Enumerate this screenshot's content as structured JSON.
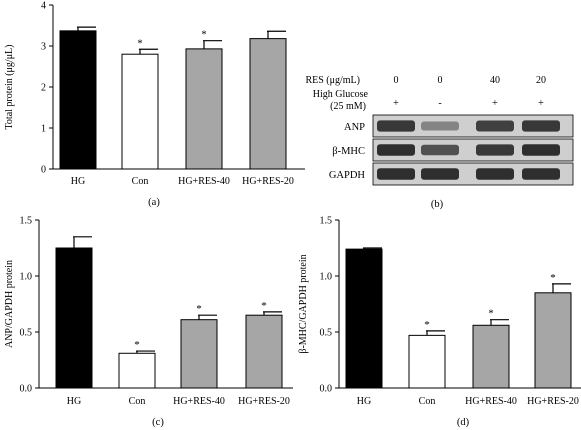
{
  "colors": {
    "black": "#000000",
    "white": "#ffffff",
    "gray": "#a6a6a6",
    "blot_bg": "#2a2a2a"
  },
  "chart_data": [
    {
      "panel": "(a)",
      "type": "bar",
      "categories": [
        "HG",
        "Con",
        "HG+RES-40",
        "HG+RES-20"
      ],
      "values": [
        3.37,
        2.8,
        2.93,
        3.18
      ],
      "errors": [
        0.09,
        0.12,
        0.2,
        0.18
      ],
      "significance": [
        "",
        "*",
        "*",
        ""
      ],
      "fills": [
        "black",
        "white",
        "gray",
        "gray"
      ],
      "ylabel": "Total protein (μg/μL)",
      "ylim": [
        0,
        4
      ],
      "yticks": [
        "0",
        "1",
        "2",
        "3",
        "4"
      ],
      "ytick_values": [
        0,
        1,
        2,
        3,
        4
      ]
    },
    {
      "panel": "(c)",
      "type": "bar",
      "categories": [
        "HG",
        "Con",
        "HG+RES-40",
        "HG+RES-20"
      ],
      "values": [
        1.25,
        0.31,
        0.61,
        0.65
      ],
      "errors": [
        0.1,
        0.02,
        0.04,
        0.03
      ],
      "significance": [
        "",
        "*",
        "*",
        "*"
      ],
      "fills": [
        "black",
        "white",
        "gray",
        "gray"
      ],
      "ylabel": "ANP/GAPDH protein",
      "ylim": [
        0,
        1.5
      ],
      "yticks": [
        "0.0",
        "0.5",
        "1.0",
        "1.5"
      ],
      "ytick_values": [
        0,
        0.5,
        1.0,
        1.5
      ]
    },
    {
      "panel": "(d)",
      "type": "bar",
      "categories": [
        "HG",
        "Con",
        "HG+RES-40",
        "HG+RES-20"
      ],
      "values": [
        1.24,
        0.47,
        0.56,
        0.85
      ],
      "errors": [
        0.01,
        0.04,
        0.05,
        0.08
      ],
      "significance": [
        "",
        "*",
        "*",
        "*"
      ],
      "fills": [
        "black",
        "white",
        "gray",
        "gray"
      ],
      "ylabel": "β-MHC/GAPDH protein",
      "ylim": [
        0,
        1.5
      ],
      "yticks": [
        "0.0",
        "0.5",
        "1.0",
        "1.5"
      ],
      "ytick_values": [
        0,
        0.5,
        1.0,
        1.5
      ]
    }
  ],
  "blot": {
    "panel": "(b)",
    "res_label": "RES (μg/mL)",
    "res_values": [
      "0",
      "0",
      "40",
      "20"
    ],
    "hg_label_line1": "High Glucose",
    "hg_label_line2": "(25 mM)",
    "hg_values": [
      "+",
      "-",
      "+",
      "+"
    ],
    "rows": [
      {
        "label": "ANP",
        "intensities": [
          0.85,
          0.4,
          0.8,
          0.85
        ]
      },
      {
        "label": "β-MHC",
        "intensities": [
          0.9,
          0.7,
          0.85,
          0.9
        ]
      },
      {
        "label": "GAPDH",
        "intensities": [
          0.9,
          0.9,
          0.9,
          0.9
        ]
      }
    ]
  }
}
